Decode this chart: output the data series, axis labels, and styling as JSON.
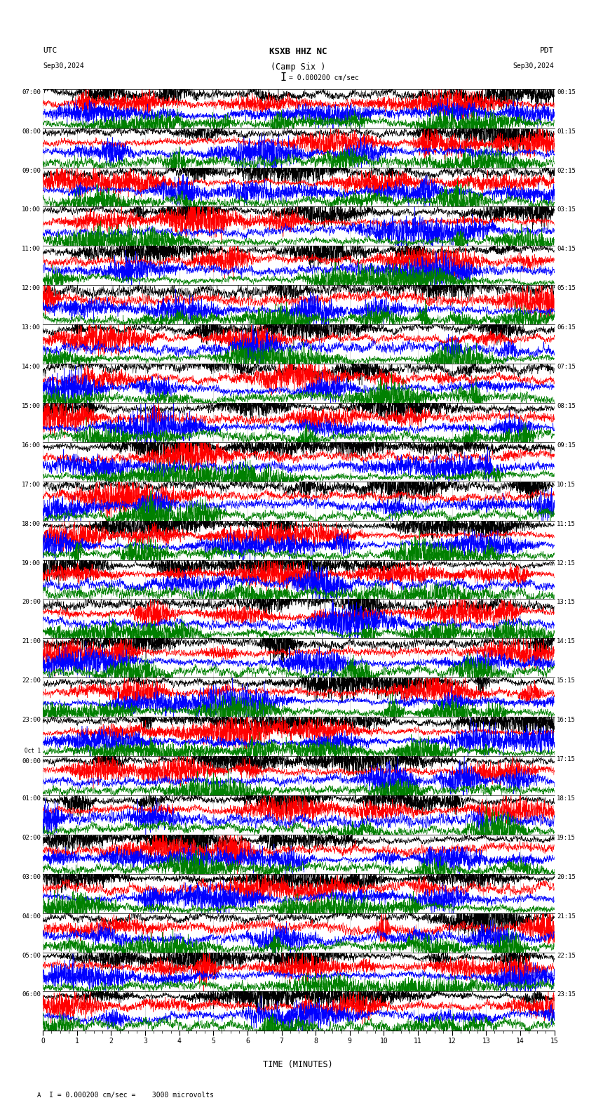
{
  "title_station": "KSXB HHZ NC",
  "title_location": "(Camp Six )",
  "scale_text": "= 0.000200 cm/sec",
  "scale_bracket": "I",
  "utc_label": "UTC",
  "pdt_label": "PDT",
  "date_left": "Sep30,2024",
  "date_right": "Sep30,2024",
  "xlabel": "TIME (MINUTES)",
  "footer_text": "A",
  "footer_scale": "I = 0.000200 cm/sec =    3000 microvolts",
  "bg_color": "#ffffff",
  "text_color": "#000000",
  "trace_colors": [
    "#000000",
    "#ff0000",
    "#0000ff",
    "#008000"
  ],
  "n_rows": 24,
  "row_labels_left": [
    "07:00",
    "08:00",
    "09:00",
    "10:00",
    "11:00",
    "12:00",
    "13:00",
    "14:00",
    "15:00",
    "16:00",
    "17:00",
    "18:00",
    "19:00",
    "20:00",
    "21:00",
    "22:00",
    "23:00",
    "Oct 1\n00:00",
    "01:00",
    "02:00",
    "03:00",
    "04:00",
    "05:00",
    "06:00"
  ],
  "row_labels_right": [
    "00:15",
    "01:15",
    "02:15",
    "03:15",
    "04:15",
    "05:15",
    "06:15",
    "07:15",
    "08:15",
    "09:15",
    "10:15",
    "11:15",
    "12:15",
    "13:15",
    "14:15",
    "15:15",
    "16:15",
    "17:15",
    "18:15",
    "19:15",
    "20:15",
    "21:15",
    "22:15",
    "23:15"
  ],
  "x_ticks": [
    0,
    1,
    2,
    3,
    4,
    5,
    6,
    7,
    8,
    9,
    10,
    11,
    12,
    13,
    14,
    15
  ],
  "x_lim": [
    0,
    15
  ],
  "traces_per_row": 4,
  "n_points": 4500,
  "seed": 42,
  "grid_color": "#aaaaaa",
  "grid_alpha": 0.6,
  "figsize": [
    8.5,
    15.84
  ],
  "dpi": 100
}
